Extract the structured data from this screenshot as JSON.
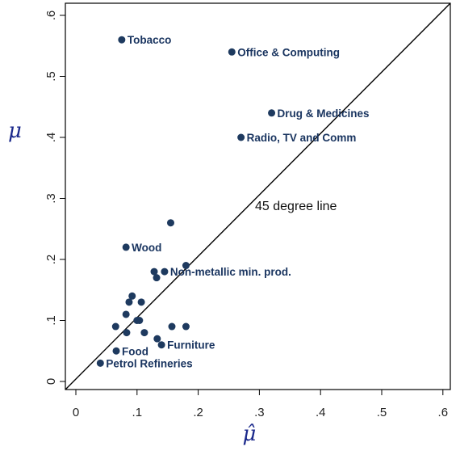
{
  "chart_data": {
    "type": "scatter",
    "title": "",
    "xlabel": "μ̂",
    "ylabel": "μ",
    "xlim": [
      0,
      0.6
    ],
    "ylim": [
      0,
      0.6
    ],
    "x_ticks": [
      0,
      0.1,
      0.2,
      0.3,
      0.4,
      0.5,
      0.6
    ],
    "y_ticks": [
      0,
      0.1,
      0.2,
      0.3,
      0.4,
      0.5,
      0.6
    ],
    "x_tick_labels": [
      "0",
      ".1",
      ".2",
      ".3",
      ".4",
      ".5",
      ".6"
    ],
    "y_tick_labels": [
      "0",
      ".1",
      ".2",
      ".3",
      ".4",
      ".5",
      ".6"
    ],
    "grid": false,
    "reference_line": {
      "slope": 1,
      "intercept": 0,
      "label": "45 degree line"
    },
    "marker_color": "#1e3a5f",
    "points": [
      {
        "x": 0.075,
        "y": 0.56,
        "label": "Tobacco"
      },
      {
        "x": 0.255,
        "y": 0.54,
        "label": "Office & Computing"
      },
      {
        "x": 0.32,
        "y": 0.44,
        "label": "Drug & Medicines"
      },
      {
        "x": 0.27,
        "y": 0.4,
        "label": "Radio, TV and Comm"
      },
      {
        "x": 0.155,
        "y": 0.26,
        "label": ""
      },
      {
        "x": 0.082,
        "y": 0.22,
        "label": "Wood"
      },
      {
        "x": 0.18,
        "y": 0.19,
        "label": ""
      },
      {
        "x": 0.145,
        "y": 0.18,
        "label": "Non-metallic min. prod."
      },
      {
        "x": 0.128,
        "y": 0.18,
        "label": ""
      },
      {
        "x": 0.132,
        "y": 0.17,
        "label": ""
      },
      {
        "x": 0.092,
        "y": 0.14,
        "label": ""
      },
      {
        "x": 0.087,
        "y": 0.13,
        "label": ""
      },
      {
        "x": 0.107,
        "y": 0.13,
        "label": ""
      },
      {
        "x": 0.082,
        "y": 0.11,
        "label": ""
      },
      {
        "x": 0.1,
        "y": 0.1,
        "label": ""
      },
      {
        "x": 0.104,
        "y": 0.1,
        "label": ""
      },
      {
        "x": 0.065,
        "y": 0.09,
        "label": ""
      },
      {
        "x": 0.157,
        "y": 0.09,
        "label": ""
      },
      {
        "x": 0.18,
        "y": 0.09,
        "label": ""
      },
      {
        "x": 0.083,
        "y": 0.08,
        "label": ""
      },
      {
        "x": 0.112,
        "y": 0.08,
        "label": ""
      },
      {
        "x": 0.133,
        "y": 0.07,
        "label": ""
      },
      {
        "x": 0.14,
        "y": 0.06,
        "label": "Furniture"
      },
      {
        "x": 0.066,
        "y": 0.05,
        "label": "Food"
      },
      {
        "x": 0.04,
        "y": 0.03,
        "label": "Petrol Refineries"
      }
    ]
  }
}
